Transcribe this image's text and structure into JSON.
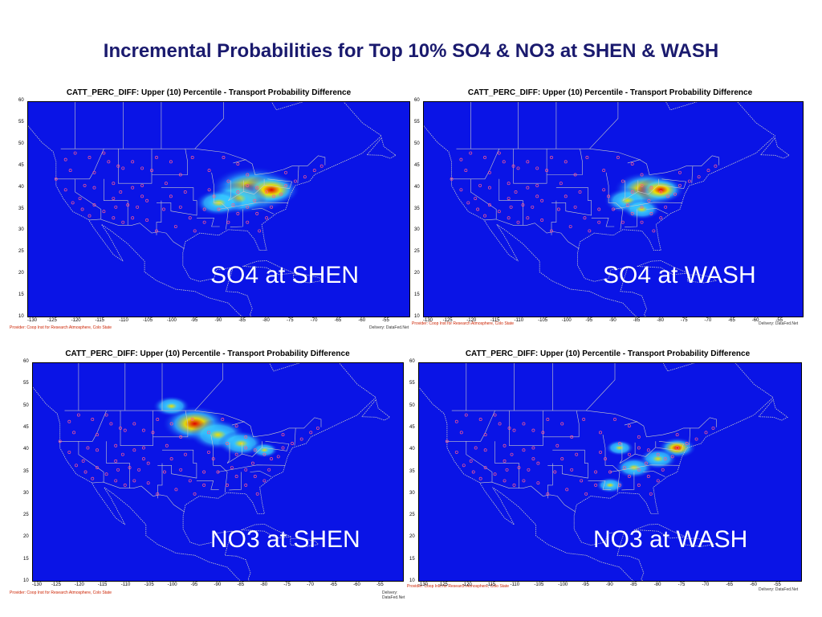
{
  "slide_title": "Incremental Probabilities for Top 10% SO4 & NO3 at SHEN & WASH",
  "colors": {
    "background": "#0a14e6",
    "low": "#36c8ff",
    "mid": "#f0e000",
    "high": "#e00000",
    "borders": "#c8c8c8",
    "sites": "#ff5a8c"
  },
  "axes": {
    "lat_ticks": [
      "60",
      "55",
      "50",
      "45",
      "40",
      "35",
      "30",
      "25",
      "20",
      "15",
      "10"
    ],
    "lon_ticks": [
      "-130",
      "-125",
      "-120",
      "-115",
      "-110",
      "-105",
      "-100",
      "-95",
      "-90",
      "-85",
      "-80",
      "-75",
      "-70",
      "-65",
      "-60",
      "-55"
    ],
    "lat_range": [
      10,
      60
    ],
    "lon_range": [
      -130,
      -50
    ]
  },
  "panels": [
    {
      "id": "so4-shen",
      "title": "CATT_PERC_DIFF: Upper (10) Percentile - Transport Probability Difference",
      "caption": "SO4 at SHEN",
      "provider": "Provider: Coop Inst for Research Atmosphere, Colo State",
      "delivery": "Delivery: DataFed.Net",
      "hotspots": [
        {
          "lon": -83,
          "lat": 39.5,
          "spread": 9,
          "level": 0.9
        },
        {
          "lon": -79,
          "lat": 39.5,
          "spread": 6,
          "level": 1.0
        },
        {
          "lon": -86,
          "lat": 37.5,
          "spread": 6,
          "level": 0.6
        },
        {
          "lon": -90,
          "lat": 36.5,
          "spread": 5,
          "level": 0.4
        }
      ]
    },
    {
      "id": "so4-wash",
      "title": "CATT_PERC_DIFF: Upper (10) Percentile - Transport Probability Difference",
      "caption": "SO4 at WASH",
      "provider": "Provider: Coop Inst for Research Atmosphere, Colo State",
      "delivery": "Delivery: DataFed.Net",
      "hotspots": [
        {
          "lon": -83,
          "lat": 39.5,
          "spread": 7,
          "level": 0.85
        },
        {
          "lon": -80,
          "lat": 39.5,
          "spread": 5,
          "level": 0.95
        },
        {
          "lon": -87,
          "lat": 37,
          "spread": 5,
          "level": 0.5
        },
        {
          "lon": -84,
          "lat": 35,
          "spread": 4,
          "level": 0.35
        }
      ]
    },
    {
      "id": "no3-shen",
      "title": "CATT_PERC_DIFF: Upper (10) Percentile - Transport Probability Difference",
      "caption": "NO3 at SHEN",
      "provider": "Provider: Coop Inst for Research Atmosphere, Colo State",
      "delivery": "Delivery: DataFed.Net",
      "hotspots": [
        {
          "lon": -95,
          "lat": 46,
          "spread": 7,
          "level": 0.85
        },
        {
          "lon": -90,
          "lat": 43.5,
          "spread": 6,
          "level": 0.7
        },
        {
          "lon": -85,
          "lat": 41.5,
          "spread": 5,
          "level": 0.5
        },
        {
          "lon": -80,
          "lat": 40,
          "spread": 3,
          "level": 0.55
        },
        {
          "lon": -100,
          "lat": 50,
          "spread": 4,
          "level": 0.3
        }
      ]
    },
    {
      "id": "no3-wash",
      "title": "CATT_PERC_DIFF: Upper (10) Percentile - Transport Probability Difference",
      "caption": "NO3 at WASH",
      "provider": "Provider: Coop Inst for Research Atmosphere, Colo State",
      "delivery": "Delivery: DataFed.Net",
      "hotspots": [
        {
          "lon": -76,
          "lat": 40.5,
          "spread": 4,
          "level": 0.95
        },
        {
          "lon": -80,
          "lat": 38,
          "spread": 4,
          "level": 0.6
        },
        {
          "lon": -85,
          "lat": 36,
          "spread": 4,
          "level": 0.5
        },
        {
          "lon": -88,
          "lat": 40.5,
          "spread": 3,
          "level": 0.35
        },
        {
          "lon": -90,
          "lat": 32,
          "spread": 3,
          "level": 0.3
        }
      ]
    }
  ]
}
